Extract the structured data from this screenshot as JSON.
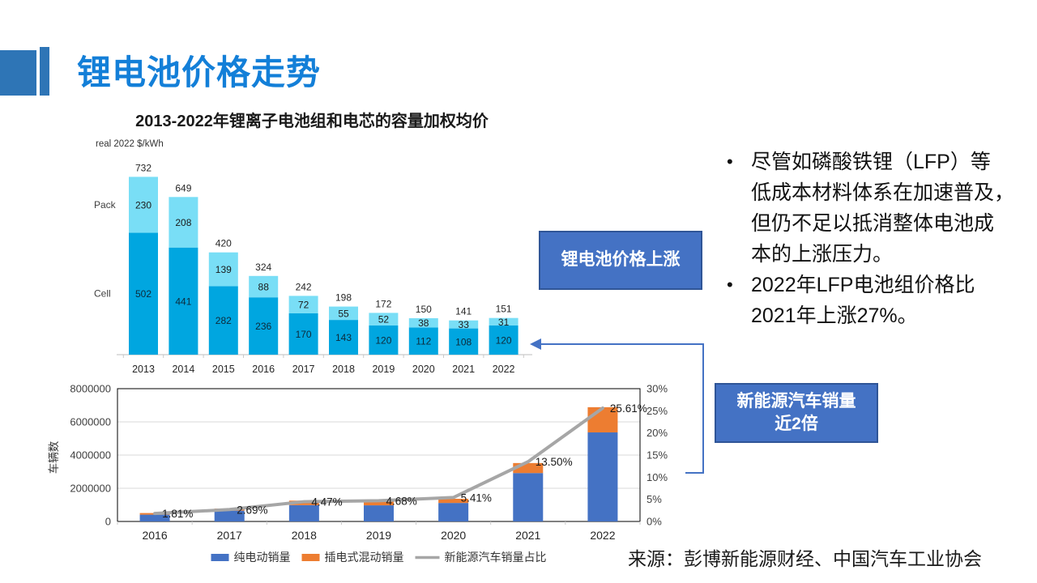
{
  "slide": {
    "title": "锂电池价格走势",
    "source": "来源：彭博新能源财经、中国汽车工业协会"
  },
  "accent": {
    "title_color": "#137FD8",
    "header_square_color": "#2E75B6",
    "callout_bg": "#4472C4",
    "callout_border": "#2F5597",
    "arrow_color": "#4472C4"
  },
  "bullets": [
    {
      "lines": [
        "尽管如磷酸铁锂（LFP）等",
        "低成本材料体系在加速普及，",
        "但仍不足以抵消整体电池成",
        "本的上涨压力。"
      ]
    },
    {
      "lines": [
        "2022年LFP电池组价格比",
        "2021年上涨27%。"
      ]
    }
  ],
  "callouts": {
    "price_label": "锂电池价格上涨",
    "nev_line1": "新能源汽车销量",
    "nev_line2": "近2倍"
  },
  "chart_data": [
    {
      "id": "battery_price",
      "type": "bar",
      "stacked": true,
      "title": "2013-2022年锂离子电池组和电芯的容量加权均价",
      "unit_label": "real 2022 $/kWh",
      "categories": [
        "2013",
        "2014",
        "2015",
        "2016",
        "2017",
        "2018",
        "2019",
        "2020",
        "2021",
        "2022"
      ],
      "series": [
        {
          "name": "Cell",
          "color": "#00A6E0",
          "values": [
            502,
            441,
            282,
            236,
            170,
            143,
            120,
            112,
            108,
            120
          ]
        },
        {
          "name": "Pack",
          "color": "#79DEF6",
          "values": [
            230,
            208,
            139,
            88,
            72,
            55,
            52,
            38,
            33,
            31
          ]
        }
      ],
      "totals": [
        732,
        649,
        420,
        324,
        242,
        198,
        172,
        150,
        141,
        151
      ],
      "ylim": [
        0,
        760
      ],
      "grid": false
    },
    {
      "id": "nev_sales",
      "type": "bar",
      "subtype": "combo-stacked-bar-line",
      "categories": [
        "2016",
        "2017",
        "2018",
        "2019",
        "2020",
        "2021",
        "2022"
      ],
      "ylabel": "车辆数",
      "left_axis": {
        "min": 0,
        "max": 8000000,
        "tick_step": 2000000,
        "tick_labels": [
          "0",
          "2000000",
          "4000000",
          "6000000",
          "8000000"
        ]
      },
      "right_axis": {
        "min": 0,
        "max": 30,
        "tick_step": 5,
        "tick_labels": [
          "0%",
          "5%",
          "10%",
          "15%",
          "20%",
          "25%",
          "30%"
        ]
      },
      "series": [
        {
          "name": "纯电动销量",
          "chart": "bar",
          "color": "#4472C4",
          "values": [
            409000,
            652000,
            984000,
            972000,
            1115000,
            2916000,
            5365000
          ]
        },
        {
          "name": "插电式混动销量",
          "chart": "bar",
          "color": "#ED7D31",
          "values": [
            98000,
            125000,
            271000,
            232000,
            251000,
            603000,
            1518000
          ]
        },
        {
          "name": "新能源汽车销量占比",
          "chart": "line",
          "color": "#A6A6A6",
          "values": [
            1.81,
            2.69,
            4.47,
            4.68,
            5.41,
            13.5,
            25.61
          ],
          "labels": [
            "1.81%",
            "2.69%",
            "4.47%",
            "4.68%",
            "5.41%",
            "13.50%",
            "25.61%"
          ]
        }
      ],
      "grid": true,
      "legend_position": "bottom"
    }
  ]
}
